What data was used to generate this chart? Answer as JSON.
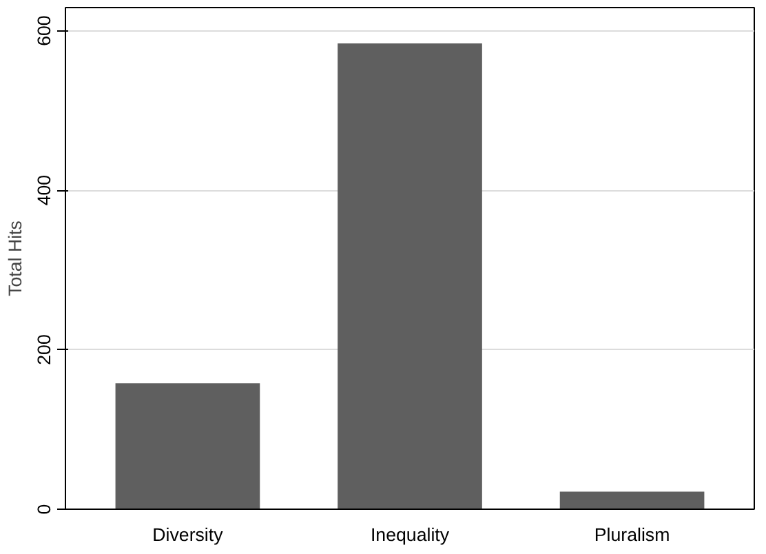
{
  "chart_data": {
    "type": "bar",
    "ylabel": "Total Hits",
    "categories": [
      "Diversity",
      "Inequality",
      "Pluralism"
    ],
    "values": [
      158,
      584,
      22
    ],
    "color": "#5f5f5f",
    "ylim": [
      0,
      629
    ],
    "yticks": [
      0,
      200,
      400,
      600
    ],
    "grid": "y"
  }
}
